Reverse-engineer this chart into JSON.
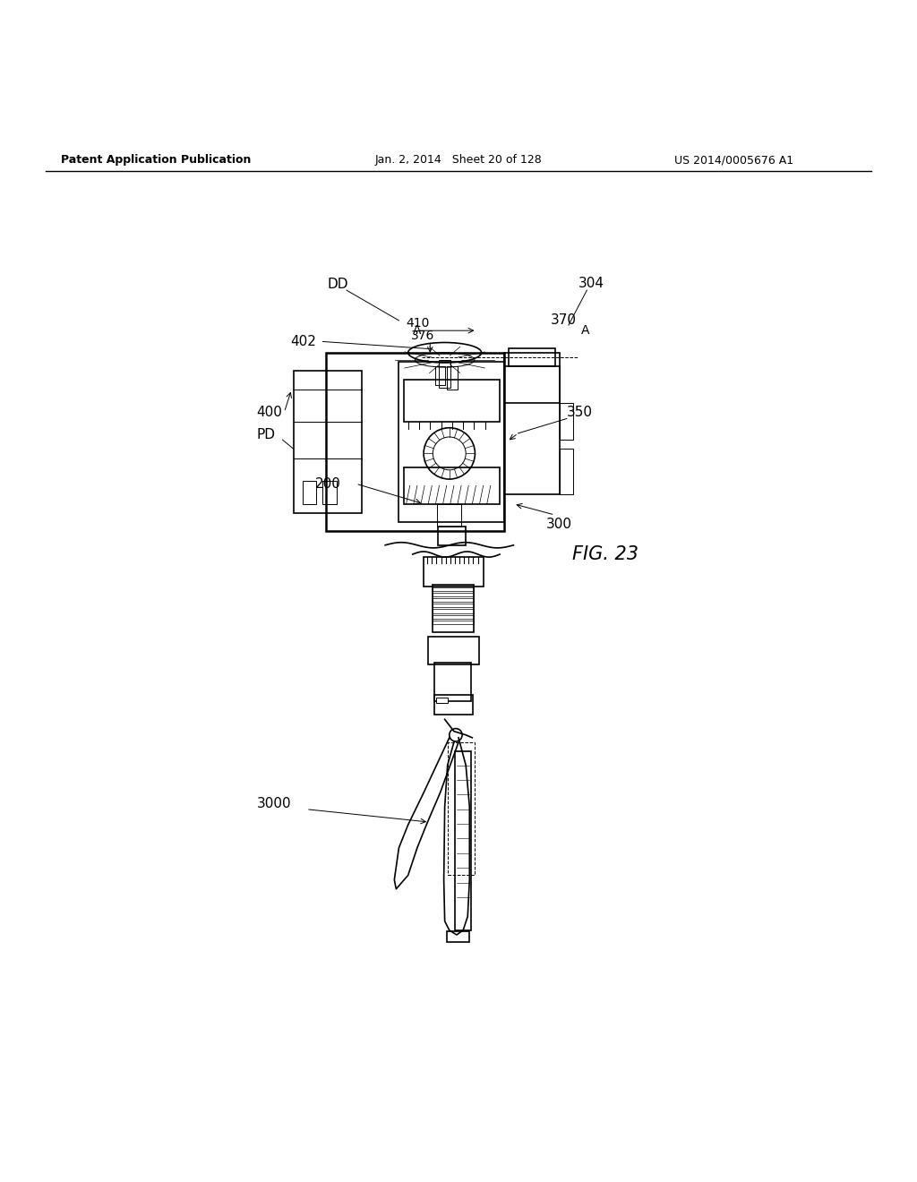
{
  "bg_color": "#ffffff",
  "line_color": "#000000",
  "header_left": "Patent Application Publication",
  "header_mid": "Jan. 2, 2014   Sheet 20 of 128",
  "header_right": "US 2014/0005676 A1",
  "fig_label": "FIG. 23",
  "label_fontsize": 11
}
